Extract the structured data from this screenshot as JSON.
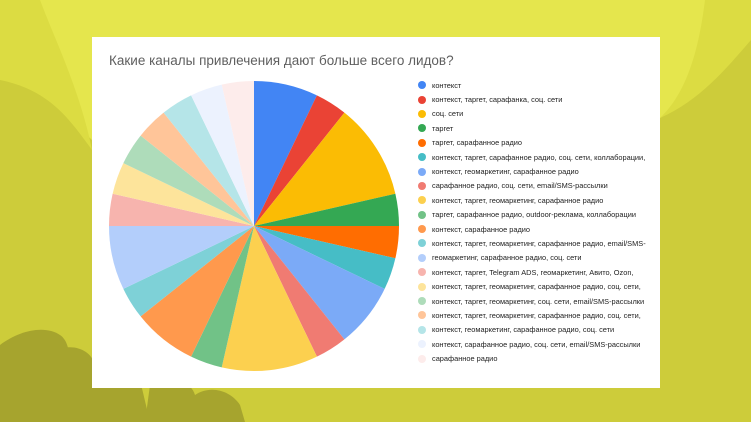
{
  "background": {
    "base_color": "#cdcc3a",
    "light_color": "#e5e64d",
    "mid_color": "#dcdc42",
    "decor_text_color": "#a6a42e"
  },
  "chart_title": "Какие каналы привлечения дают больше всего лидов?",
  "chart_data": {
    "type": "pie",
    "title": "Какие каналы привлечения дают больше всего лидов?",
    "legend_position": "right",
    "start_angle_deg": 0,
    "direction": "clockwise",
    "categories": [
      "контекст",
      "контекст, таргет, сарафанка, соц. сети",
      "соц. сети",
      "таргет",
      "таргет, сарафанное радио",
      "контекст, таргет, сарафанное радио, соц. сети, коллаборации,",
      "контекст, геомаркетинг, сарафанное радио",
      "сарафанное радио, соц. сети, email/SMS-рассылки",
      "контекст, таргет, геомаркетинг, сарафанное радио",
      "таргет, сарафанное радио, outdoor-реклама, коллаборации",
      "контекст, сарафанное радио",
      "контекст, таргет, геомаркетинг, сарафанное радио, email/SMS-",
      "геомаркетинг, сарафанное радио, соц. сети",
      "контекст, таргет, Telegram ADS, геомаркетинг, Авито, Ozon,",
      "контекст, таргет, геомаркетинг, сарафанное радио, соц. сети,",
      "контекст, таргет, геомаркетинг, соц. сети, email/SMS-рассылки",
      "контекст, таргет, геомаркетинг, сарафанное радио, соц. сети,",
      "контекст, геомаркетинг, сарафанное радио, соц. сети",
      "контекст, сарафанное радио, соц. сети, email/SMS-рассылки",
      "сарафанное радио"
    ],
    "values": [
      2,
      1,
      3,
      1,
      1,
      1,
      2,
      1,
      3,
      1,
      2,
      1,
      2,
      1,
      1,
      1,
      1,
      1,
      1,
      1
    ],
    "percent_estimates": [
      7.1,
      3.6,
      10.7,
      3.6,
      3.6,
      3.6,
      7.1,
      3.6,
      10.7,
      3.6,
      7.1,
      3.6,
      7.1,
      3.6,
      3.6,
      3.6,
      3.6,
      3.6,
      3.6,
      3.6
    ],
    "colors": [
      "#4285f4",
      "#ea4335",
      "#fbbc04",
      "#34a853",
      "#ff6d01",
      "#46bdc6",
      "#7baaf7",
      "#f07b72",
      "#fcd04f",
      "#71c287",
      "#ff994d",
      "#7ed1d7",
      "#b3cefb",
      "#f7b4ae",
      "#fde49b",
      "#aedcba",
      "#ffc599",
      "#b5e5e8",
      "#ecf2fe",
      "#fdeceb"
    ]
  }
}
